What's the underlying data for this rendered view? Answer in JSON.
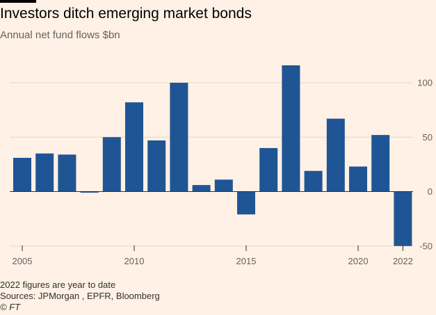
{
  "header": {
    "title": "Investors ditch emerging market bonds",
    "subtitle": "Annual net fund flows $bn"
  },
  "footer": {
    "note": "2022 figures are year to date",
    "sources": "Sources: JPMorgan , EPFR, Bloomberg",
    "copyright": "© FT"
  },
  "colors": {
    "bar": "#1f5594",
    "grid": "#e0d5cb",
    "zero": "#33302e",
    "axis_text": "#66605c",
    "background": "#fff1e5"
  },
  "chart_data": {
    "type": "bar",
    "title": "Investors ditch emerging market bonds",
    "subtitle": "Annual net fund flows $bn",
    "xlabel": "",
    "ylabel": "",
    "categories": [
      "2005",
      "2006",
      "2007",
      "2008",
      "2009",
      "2010",
      "2011",
      "2012",
      "2013",
      "2014",
      "2015",
      "2016",
      "2017",
      "2018",
      "2019",
      "2020",
      "2021",
      "2022"
    ],
    "values": [
      31,
      35,
      34,
      -1,
      50,
      82,
      47,
      100,
      6,
      11,
      -21,
      40,
      116,
      19,
      67,
      23,
      52,
      -50
    ],
    "ylim": [
      -50,
      125
    ],
    "yticks": [
      -50,
      0,
      50,
      100
    ],
    "xtick_labels": [
      "2005",
      "2010",
      "2015",
      "2020",
      "2022"
    ],
    "grid": true,
    "yaxis_side": "right",
    "legend": "none"
  }
}
